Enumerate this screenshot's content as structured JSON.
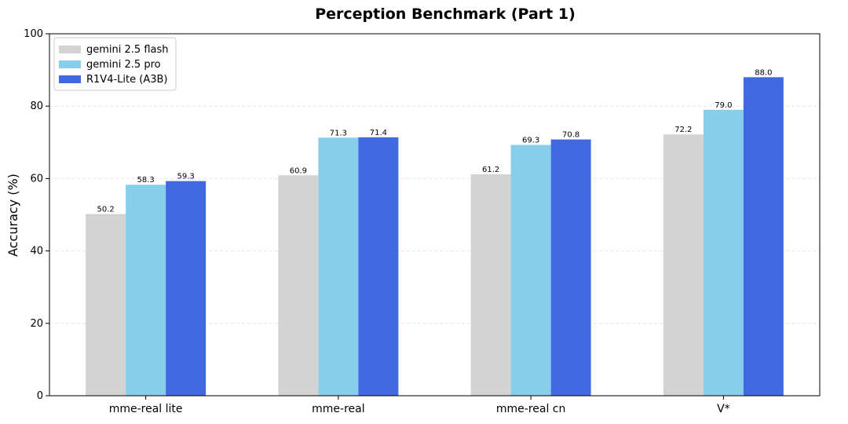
{
  "chart_data": {
    "type": "bar",
    "title": "Perception Benchmark (Part 1)",
    "xlabel": "",
    "ylabel": "Accuracy (%)",
    "ylim": [
      0,
      100
    ],
    "yticks": [
      0,
      20,
      40,
      60,
      80,
      100
    ],
    "grid": true,
    "legend_position": "top-left",
    "categories": [
      "mme-real lite",
      "mme-real",
      "mme-real cn",
      "V*"
    ],
    "series": [
      {
        "name": "gemini 2.5 flash",
        "color": "#d3d3d3",
        "values": [
          50.2,
          60.9,
          61.2,
          72.2
        ]
      },
      {
        "name": "gemini 2.5 pro",
        "color": "#87ceeb",
        "values": [
          58.3,
          71.3,
          69.3,
          79.0
        ]
      },
      {
        "name": "R1V4-Lite (A3B)",
        "color": "#4169e1",
        "values": [
          59.3,
          71.4,
          70.8,
          88.0
        ]
      }
    ]
  }
}
